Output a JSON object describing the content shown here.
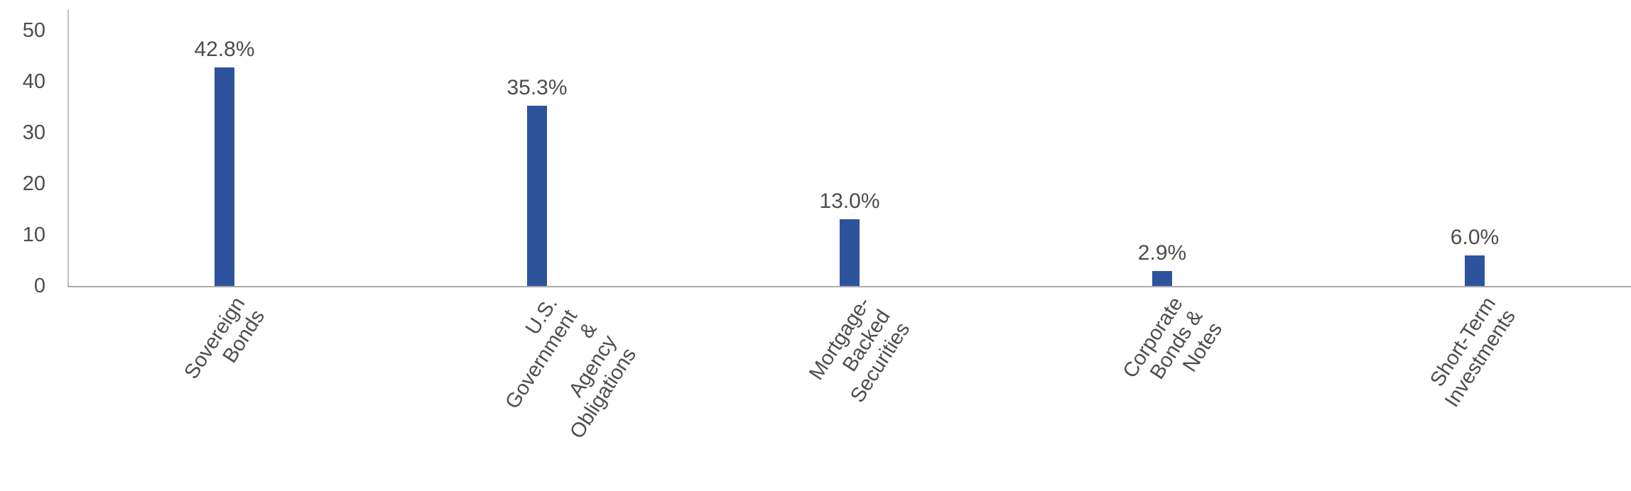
{
  "chart_data": {
    "type": "bar",
    "title": "",
    "xlabel": "",
    "ylabel": "",
    "categories": [
      "Sovereign Bonds",
      "U.S. Government &\nAgency\nObligations",
      "Mortgage-Backed\nSecurities",
      "Corporate Bonds &\nNotes",
      "Short-Term\nInvestments"
    ],
    "values": [
      42.8,
      35.3,
      13.0,
      2.9,
      6.0
    ],
    "value_labels": [
      "42.8%",
      "35.3%",
      "13.0%",
      "2.9%",
      "6.0%"
    ],
    "y_ticks": [
      0,
      10,
      20,
      30,
      40,
      50
    ],
    "ylim": [
      0,
      54
    ],
    "grid": "off",
    "legend_position": "none",
    "bar_color": "#2e539d",
    "y_axis_line_color": "#bfbfbf",
    "x_axis_line_color": "#ababab",
    "label_text_color": "#4d4d4d"
  }
}
